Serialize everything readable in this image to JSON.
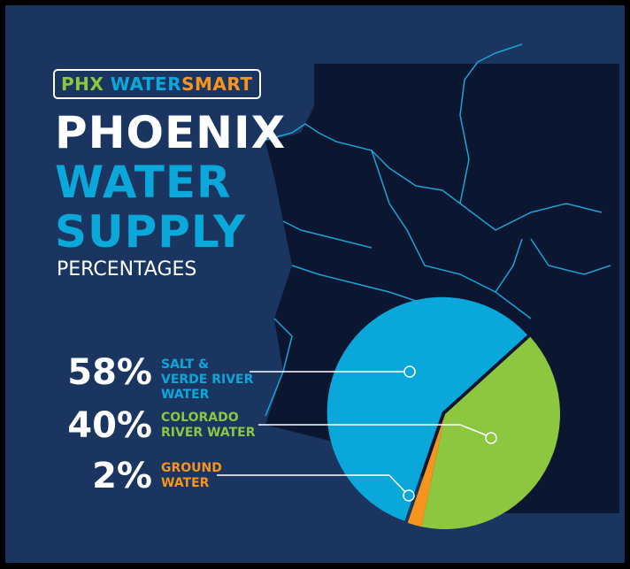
{
  "header": {
    "logo": [
      "PHX",
      "WATER",
      "SMART"
    ],
    "title_line1": "PHOENIX",
    "title_line2": "WATER",
    "title_line3": "SUPPLY",
    "subtitle": "PERCENTAGES"
  },
  "chart_data": {
    "type": "pie",
    "categories": [
      "SALT & VERDE RIVER WATER",
      "COLORADO RIVER WATER",
      "GROUND WATER"
    ],
    "values": [
      58,
      40,
      2
    ],
    "value_labels": [
      "58%",
      "40%",
      "2%"
    ],
    "colors": [
      "#0aa8da",
      "#8dc63f",
      "#f7941d"
    ]
  }
}
